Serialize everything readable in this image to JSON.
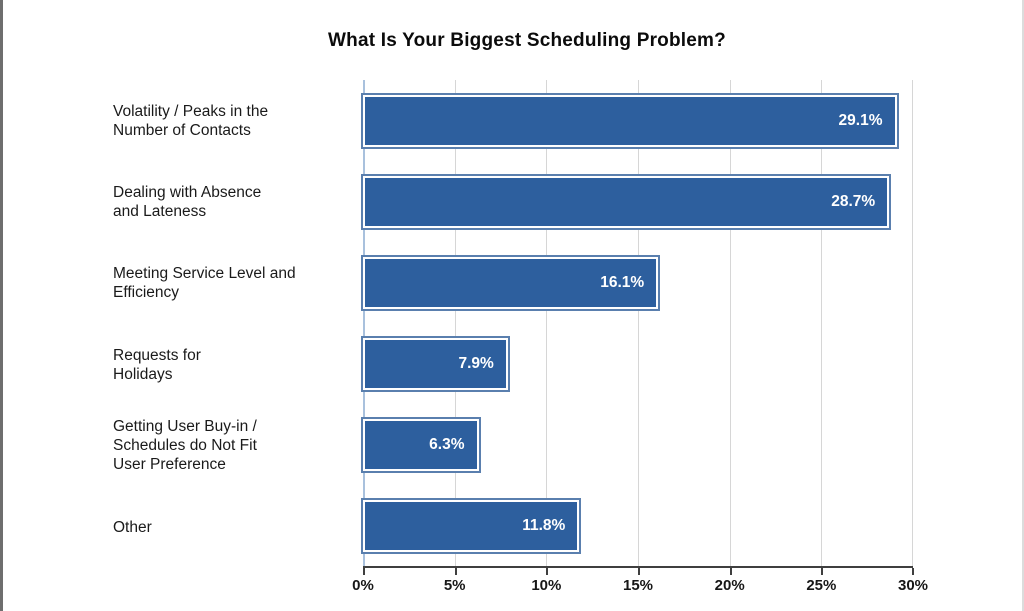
{
  "chart_data": {
    "type": "bar",
    "orientation": "horizontal",
    "title": "What Is Your Biggest Scheduling Problem?",
    "categories": [
      "Volatility / Peaks in the\nNumber of  Contacts",
      "Dealing with Absence\nand Lateness",
      "Meeting Service Level and\nEfficiency",
      "Requests for\nHolidays",
      "Getting User Buy-in /\nSchedules do Not Fit\nUser Preference",
      "Other"
    ],
    "values": [
      29.1,
      28.7,
      16.1,
      7.9,
      6.3,
      11.8
    ],
    "value_labels": [
      "29.1%",
      "28.7%",
      "16.1%",
      "7.9%",
      "6.3%",
      "11.8%"
    ],
    "x_ticks": [
      "0%",
      "5%",
      "10%",
      "15%",
      "20%",
      "25%",
      "30%"
    ],
    "xlim": [
      0,
      30
    ],
    "xlabel": "",
    "ylabel": "",
    "grid": "vertical",
    "legend": "none",
    "colors": {
      "bar_fill": "#2d5f9e",
      "bar_inner_border": "#ffffff",
      "bar_outer_border": "#5a7fae",
      "gridline": "#d6d6d6",
      "zero_line": "#a9c1dd",
      "axis_line": "#3f3f3f",
      "value_text": "#ffffff",
      "label_text": "#1a1a1a"
    }
  }
}
